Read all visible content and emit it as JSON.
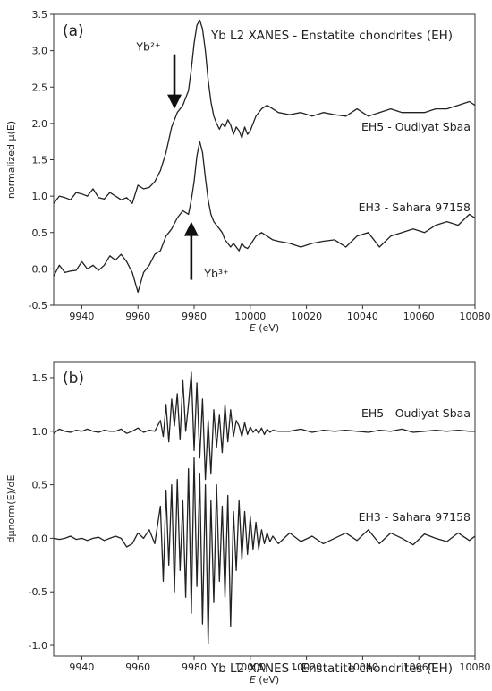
{
  "chart_data": [
    {
      "type": "line",
      "panel_label": "(a)",
      "title": "Yb L2 XANES - Enstatite chondrites (EH)",
      "xlabel_italic": "E",
      "xlabel_unit": " (eV)",
      "ylabel": "normalized μ(E)",
      "xlim": [
        9930,
        10080
      ],
      "ylim": [
        -0.5,
        3.5
      ],
      "xticks": [
        "9940",
        "9960",
        "9980",
        "10000",
        "10020",
        "10040",
        "10060",
        "10080"
      ],
      "yticks": [
        "-0.5",
        "0.0",
        "0.5",
        "1.0",
        "1.5",
        "2.0",
        "2.5",
        "3.0",
        "3.5"
      ],
      "grid": false,
      "annotations": [
        {
          "text": "Yb²⁺",
          "x": 9970,
          "y": 3.0,
          "arrow": "down",
          "from": [
            9973,
            2.95
          ],
          "to": [
            9973,
            2.2
          ]
        },
        {
          "text": "Yb³⁺",
          "x": 9983,
          "y": -0.12,
          "arrow": "up",
          "from": [
            9979,
            -0.15
          ],
          "to": [
            9979,
            0.65
          ]
        }
      ],
      "series": [
        {
          "name": "EH5 - Oudiyat Sbaa",
          "x": [
            9930,
            9932,
            9934,
            9936,
            9938,
            9940,
            9942,
            9944,
            9946,
            9948,
            9950,
            9952,
            9954,
            9956,
            9958,
            9960,
            9962,
            9964,
            9966,
            9968,
            9970,
            9972,
            9974,
            9976,
            9978,
            9979,
            9980,
            9981,
            9982,
            9983,
            9984,
            9985,
            9986,
            9987,
            9988,
            9989,
            9990,
            9991,
            9992,
            9993,
            9994,
            9995,
            9996,
            9997,
            9998,
            9999,
            10000,
            10002,
            10004,
            10006,
            10008,
            10010,
            10014,
            10018,
            10022,
            10026,
            10030,
            10034,
            10038,
            10042,
            10046,
            10050,
            10054,
            10058,
            10062,
            10066,
            10070,
            10074,
            10078,
            10080
          ],
          "y": [
            0.9,
            1.0,
            0.98,
            0.95,
            1.05,
            1.03,
            1.0,
            1.1,
            0.98,
            0.96,
            1.05,
            1.0,
            0.95,
            0.98,
            0.9,
            1.15,
            1.1,
            1.12,
            1.2,
            1.35,
            1.6,
            1.95,
            2.15,
            2.25,
            2.45,
            2.75,
            3.1,
            3.35,
            3.42,
            3.3,
            3.0,
            2.6,
            2.3,
            2.1,
            2.0,
            1.92,
            2.0,
            1.95,
            2.05,
            1.98,
            1.85,
            1.95,
            1.9,
            1.8,
            1.95,
            1.85,
            1.9,
            2.1,
            2.2,
            2.25,
            2.2,
            2.15,
            2.12,
            2.15,
            2.1,
            2.15,
            2.12,
            2.1,
            2.2,
            2.1,
            2.15,
            2.2,
            2.15,
            2.15,
            2.15,
            2.2,
            2.2,
            2.25,
            2.3,
            2.25
          ]
        },
        {
          "name": "EH3 - Sahara 97158",
          "x": [
            9930,
            9932,
            9934,
            9936,
            9938,
            9940,
            9942,
            9944,
            9946,
            9948,
            9950,
            9952,
            9954,
            9956,
            9958,
            9960,
            9962,
            9964,
            9966,
            9968,
            9970,
            9972,
            9974,
            9976,
            9978,
            9979,
            9980,
            9981,
            9982,
            9983,
            9984,
            9985,
            9986,
            9987,
            9988,
            9989,
            9990,
            9991,
            9992,
            9993,
            9994,
            9995,
            9996,
            9997,
            9998,
            9999,
            10000,
            10002,
            10004,
            10006,
            10008,
            10010,
            10014,
            10018,
            10022,
            10026,
            10030,
            10034,
            10038,
            10042,
            10046,
            10050,
            10054,
            10058,
            10062,
            10066,
            10070,
            10074,
            10078,
            10080
          ],
          "y": [
            -0.1,
            0.05,
            -0.05,
            -0.03,
            -0.02,
            0.1,
            0.0,
            0.05,
            -0.02,
            0.05,
            0.18,
            0.12,
            0.2,
            0.1,
            -0.05,
            -0.32,
            -0.05,
            0.05,
            0.2,
            0.25,
            0.45,
            0.55,
            0.7,
            0.8,
            0.75,
            0.95,
            1.2,
            1.55,
            1.75,
            1.6,
            1.25,
            0.95,
            0.75,
            0.65,
            0.6,
            0.55,
            0.5,
            0.4,
            0.35,
            0.3,
            0.35,
            0.3,
            0.25,
            0.35,
            0.3,
            0.28,
            0.33,
            0.45,
            0.5,
            0.45,
            0.4,
            0.38,
            0.35,
            0.3,
            0.35,
            0.38,
            0.4,
            0.3,
            0.45,
            0.5,
            0.3,
            0.45,
            0.5,
            0.55,
            0.5,
            0.6,
            0.65,
            0.6,
            0.75,
            0.7
          ]
        }
      ]
    },
    {
      "type": "line",
      "panel_label": "(b)",
      "title": "Yb L2 XANES - Enstatite chondrites (EH)",
      "xlabel_italic": "E",
      "xlabel_unit": " (eV)",
      "ylabel": "dμnorm(E)/dE",
      "xlim": [
        9930,
        10080
      ],
      "ylim": [
        -1.1,
        1.65
      ],
      "xticks": [
        "9940",
        "9960",
        "9980",
        "10000",
        "10020",
        "10040",
        "10060",
        "10080"
      ],
      "yticks": [
        "-1.0",
        "-0.5",
        "0.0",
        "0.5",
        "1.0",
        "1.5"
      ],
      "grid": false,
      "series": [
        {
          "name": "EH5 - Oudiyat Sbaa",
          "x": [
            9930,
            9932,
            9934,
            9936,
            9938,
            9940,
            9942,
            9944,
            9946,
            9948,
            9950,
            9952,
            9954,
            9956,
            9958,
            9960,
            9962,
            9964,
            9966,
            9968,
            9969,
            9970,
            9971,
            9972,
            9973,
            9974,
            9975,
            9976,
            9977,
            9978,
            9979,
            9980,
            9981,
            9982,
            9983,
            9984,
            9985,
            9986,
            9987,
            9988,
            9989,
            9990,
            9991,
            9992,
            9993,
            9994,
            9995,
            9996,
            9997,
            9998,
            9999,
            10000,
            10001,
            10002,
            10003,
            10004,
            10005,
            10006,
            10007,
            10008,
            10010,
            10014,
            10018,
            10022,
            10026,
            10030,
            10034,
            10038,
            10042,
            10046,
            10050,
            10054,
            10058,
            10062,
            10066,
            10070,
            10074,
            10078,
            10080
          ],
          "y": [
            0.98,
            1.02,
            1.0,
            0.99,
            1.01,
            1.0,
            1.02,
            1.0,
            0.99,
            1.01,
            1.0,
            1.0,
            1.02,
            0.98,
            1.0,
            1.03,
            0.99,
            1.01,
            1.0,
            1.1,
            0.95,
            1.25,
            0.9,
            1.3,
            1.05,
            1.35,
            0.92,
            1.48,
            1.0,
            1.25,
            1.55,
            0.82,
            1.45,
            0.75,
            1.3,
            0.55,
            1.1,
            0.6,
            1.2,
            0.85,
            1.15,
            0.8,
            1.25,
            0.9,
            1.2,
            0.95,
            1.1,
            1.05,
            0.95,
            1.08,
            0.97,
            1.04,
            0.99,
            1.02,
            0.98,
            1.03,
            0.97,
            1.02,
            0.99,
            1.01,
            1.0,
            1.0,
            1.02,
            0.99,
            1.01,
            1.0,
            1.01,
            1.0,
            0.99,
            1.01,
            1.0,
            1.02,
            0.99,
            1.0,
            1.01,
            1.0,
            1.01,
            1.0,
            1.0
          ]
        },
        {
          "name": "EH3 - Sahara 97158",
          "x": [
            9930,
            9932,
            9934,
            9936,
            9938,
            9940,
            9942,
            9944,
            9946,
            9948,
            9950,
            9952,
            9954,
            9956,
            9958,
            9960,
            9962,
            9964,
            9966,
            9968,
            9969,
            9970,
            9971,
            9972,
            9973,
            9974,
            9975,
            9976,
            9977,
            9978,
            9979,
            9980,
            9981,
            9982,
            9983,
            9984,
            9985,
            9986,
            9987,
            9988,
            9989,
            9990,
            9991,
            9992,
            9993,
            9994,
            9995,
            9996,
            9997,
            9998,
            9999,
            10000,
            10001,
            10002,
            10003,
            10004,
            10005,
            10006,
            10007,
            10008,
            10010,
            10014,
            10018,
            10022,
            10026,
            10030,
            10034,
            10038,
            10042,
            10046,
            10050,
            10054,
            10058,
            10062,
            10066,
            10070,
            10074,
            10078,
            10080
          ],
          "y": [
            0.0,
            -0.01,
            0.0,
            0.02,
            -0.01,
            0.0,
            -0.02,
            0.0,
            0.01,
            -0.02,
            0.0,
            0.02,
            0.0,
            -0.08,
            -0.05,
            0.05,
            0.0,
            0.08,
            -0.05,
            0.3,
            -0.4,
            0.45,
            -0.25,
            0.5,
            -0.5,
            0.55,
            -0.3,
            0.35,
            -0.55,
            0.65,
            -0.7,
            0.75,
            -0.45,
            0.6,
            -0.8,
            0.5,
            -0.98,
            0.35,
            -0.6,
            0.5,
            -0.4,
            0.3,
            -0.55,
            0.4,
            -0.82,
            0.25,
            -0.3,
            0.35,
            -0.2,
            0.25,
            -0.15,
            0.2,
            -0.1,
            0.15,
            -0.1,
            0.08,
            -0.05,
            0.05,
            -0.03,
            0.02,
            -0.05,
            0.05,
            -0.03,
            0.02,
            -0.05,
            0.0,
            0.05,
            -0.02,
            0.08,
            -0.05,
            0.05,
            0.0,
            -0.06,
            0.04,
            0.0,
            -0.03,
            0.05,
            -0.02,
            0.02
          ]
        }
      ]
    }
  ]
}
